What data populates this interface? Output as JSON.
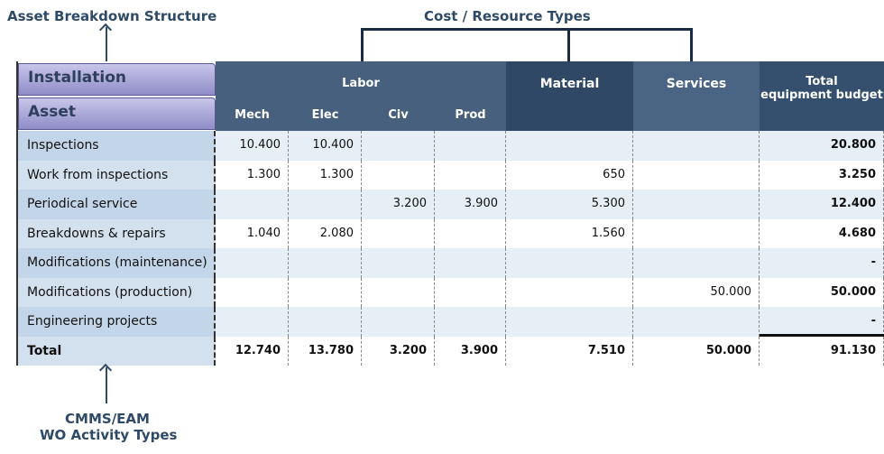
{
  "annotations": {
    "top_left": "Asset Breakdown Structure",
    "top_center": "Cost / Resource Types",
    "bottom_left_line1": "CMMS/EAM",
    "bottom_left_line2": "WO Activity Types"
  },
  "header": {
    "installation": "Installation",
    "asset": "Asset",
    "labor": "Labor",
    "mech": "Mech",
    "elec": "Elec",
    "civ": "Civ",
    "prod": "Prod",
    "material": "Material",
    "services": "Services",
    "total_line1": "Total",
    "total_line2": "equipment budget"
  },
  "rows": [
    {
      "label": "Inspections",
      "mech": "10.400",
      "elec": "10.400",
      "civ": "",
      "prod": "",
      "material": "",
      "services": "",
      "total": "20.800"
    },
    {
      "label": "Work from inspections",
      "mech": "1.300",
      "elec": "1.300",
      "civ": "",
      "prod": "",
      "material": "650",
      "services": "",
      "total": "3.250"
    },
    {
      "label": "Periodical service",
      "mech": "",
      "elec": "",
      "civ": "3.200",
      "prod": "3.900",
      "material": "5.300",
      "services": "",
      "total": "12.400"
    },
    {
      "label": "Breakdowns & repairs",
      "mech": "1.040",
      "elec": "2.080",
      "civ": "",
      "prod": "",
      "material": "1.560",
      "services": "",
      "total": "4.680"
    },
    {
      "label": "Modifications (maintenance)",
      "mech": "",
      "elec": "",
      "civ": "",
      "prod": "",
      "material": "",
      "services": "",
      "total": "-"
    },
    {
      "label": "Modifications (production)",
      "mech": "",
      "elec": "",
      "civ": "",
      "prod": "",
      "material": "",
      "services": "50.000",
      "total": "50.000"
    },
    {
      "label": "Engineering projects",
      "mech": "",
      "elec": "",
      "civ": "",
      "prod": "",
      "material": "",
      "services": "",
      "total": "-"
    },
    {
      "label": "Total",
      "mech": "12.740",
      "elec": "13.780",
      "civ": "3.200",
      "prod": "3.900",
      "material": "7.510",
      "services": "50.000",
      "total": "91.130"
    }
  ]
}
